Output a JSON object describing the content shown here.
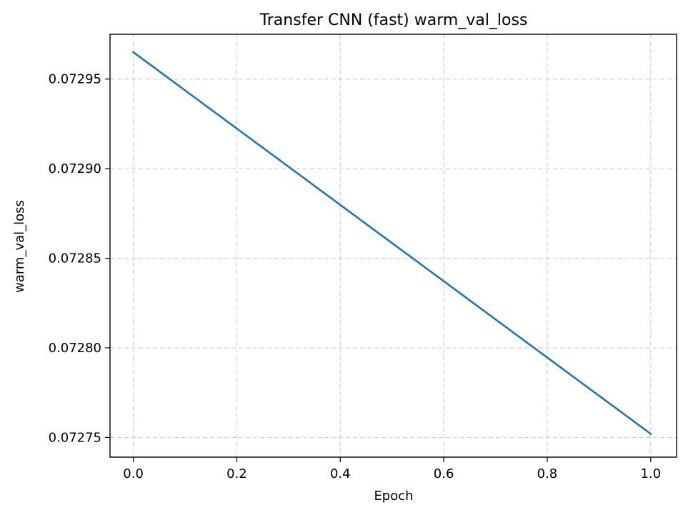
{
  "chart_data": {
    "type": "line",
    "title": "Transfer CNN (fast) warm_val_loss",
    "xlabel": "Epoch",
    "ylabel": "warm_val_loss",
    "xlim": [
      -0.045,
      1.05
    ],
    "ylim": [
      0.072739,
      0.072975
    ],
    "xticks": [
      0.0,
      0.2,
      0.4,
      0.6,
      0.8,
      1.0
    ],
    "xtick_labels": [
      "0.0",
      "0.2",
      "0.4",
      "0.6",
      "0.8",
      "1.0"
    ],
    "yticks": [
      0.07275,
      0.0728,
      0.07285,
      0.0729,
      0.07295
    ],
    "ytick_labels": [
      "0.07275",
      "0.07280",
      "0.07285",
      "0.07290",
      "0.07295"
    ],
    "grid": true,
    "series": [
      {
        "color": "#1f77b4",
        "x": [
          0,
          1
        ],
        "y": [
          0.072965,
          0.072752
        ]
      }
    ]
  }
}
